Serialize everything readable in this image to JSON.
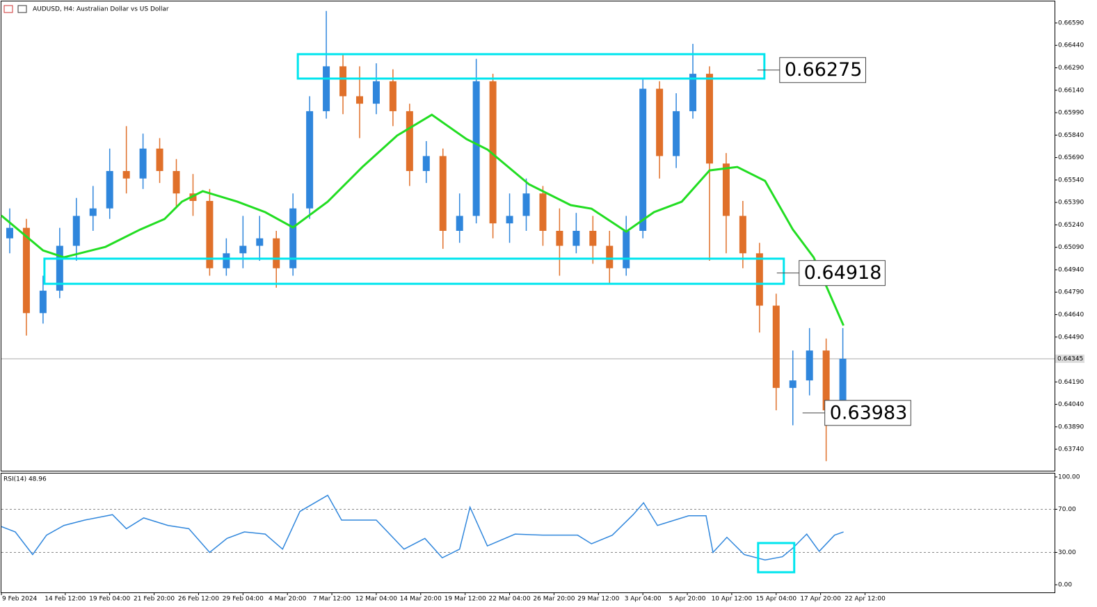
{
  "chart_data": [
    {
      "type": "candlestick",
      "title": "AUDUSD, H4:  Australian Dollar vs US Dollar",
      "x": [
        3,
        9,
        15,
        21,
        27,
        33,
        39,
        45,
        51,
        57,
        63,
        69,
        75,
        81,
        87,
        93,
        99,
        105,
        111,
        117,
        123,
        129,
        135,
        141,
        147,
        153,
        159,
        165,
        171,
        177,
        183,
        189,
        195,
        201,
        207,
        213,
        219,
        225,
        231,
        237,
        243,
        249,
        255,
        261,
        267,
        273,
        279,
        285,
        291,
        297,
        303
      ],
      "open": [
        0.6515,
        0.6522,
        0.6465,
        0.648,
        0.651,
        0.653,
        0.6535,
        0.656,
        0.6555,
        0.6575,
        0.656,
        0.6545,
        0.654,
        0.6495,
        0.6505,
        0.651,
        0.6515,
        0.6495,
        0.6535,
        0.66,
        0.663,
        0.661,
        0.6605,
        0.662,
        0.66,
        0.656,
        0.657,
        0.652,
        0.653,
        0.662,
        0.6525,
        0.653,
        0.6545,
        0.652,
        0.651,
        0.652,
        0.651,
        0.6495,
        0.652,
        0.6615,
        0.657,
        0.66,
        0.6625,
        0.6565,
        0.653,
        0.6505,
        0.647,
        0.6415,
        0.642,
        0.644,
        0.64
      ],
      "high": [
        0.6535,
        0.6528,
        0.649,
        0.6522,
        0.6542,
        0.655,
        0.6575,
        0.659,
        0.6585,
        0.6582,
        0.6568,
        0.6558,
        0.6548,
        0.6515,
        0.653,
        0.653,
        0.652,
        0.6545,
        0.661,
        0.6667,
        0.6638,
        0.663,
        0.6632,
        0.6628,
        0.6605,
        0.658,
        0.6575,
        0.6545,
        0.6635,
        0.6625,
        0.6545,
        0.6555,
        0.655,
        0.6535,
        0.6532,
        0.653,
        0.652,
        0.653,
        0.6622,
        0.662,
        0.6612,
        0.6645,
        0.663,
        0.6572,
        0.654,
        0.6512,
        0.6478,
        0.644,
        0.6455,
        0.6448,
        0.6455
      ],
      "low": [
        0.6505,
        0.645,
        0.6458,
        0.6475,
        0.65,
        0.652,
        0.6528,
        0.6545,
        0.6548,
        0.6552,
        0.6535,
        0.653,
        0.649,
        0.649,
        0.6495,
        0.65,
        0.6482,
        0.649,
        0.6528,
        0.6595,
        0.6598,
        0.6582,
        0.6598,
        0.659,
        0.655,
        0.6552,
        0.6508,
        0.6512,
        0.6525,
        0.6515,
        0.6512,
        0.652,
        0.651,
        0.649,
        0.6505,
        0.6498,
        0.6485,
        0.649,
        0.6515,
        0.6555,
        0.6562,
        0.6595,
        0.65,
        0.6505,
        0.6495,
        0.6452,
        0.64,
        0.639,
        0.641,
        0.6366,
        0.6395
      ],
      "close": [
        0.6522,
        0.6465,
        0.648,
        0.651,
        0.653,
        0.6535,
        0.656,
        0.6555,
        0.6575,
        0.656,
        0.6545,
        0.654,
        0.6495,
        0.6505,
        0.651,
        0.6515,
        0.6495,
        0.6535,
        0.66,
        0.663,
        0.661,
        0.6605,
        0.662,
        0.66,
        0.656,
        0.657,
        0.652,
        0.653,
        0.662,
        0.6525,
        0.653,
        0.6545,
        0.652,
        0.651,
        0.652,
        0.651,
        0.6495,
        0.652,
        0.6615,
        0.657,
        0.66,
        0.6625,
        0.6565,
        0.653,
        0.6505,
        0.647,
        0.6415,
        0.642,
        0.644,
        0.64,
        0.64345
      ],
      "up_color": "#2f86dc",
      "down_color": "#e0702a",
      "ma": {
        "color": "#22dd22",
        "x": [
          0,
          15,
          22.5,
          37.5,
          50,
          58.75,
          65,
          72.5,
          85,
          95,
          105,
          117.5,
          130,
          142.5,
          155,
          167.5,
          175,
          190,
          205,
          212.5,
          225,
          235,
          245,
          255,
          265,
          275,
          285,
          292.5,
          303.25
        ],
        "values": [
          0.65302,
          0.65069,
          0.65023,
          0.65093,
          0.65209,
          0.65279,
          0.65395,
          0.65465,
          0.65395,
          0.65325,
          0.65223,
          0.65395,
          0.65627,
          0.65837,
          0.65976,
          0.65813,
          0.65744,
          0.65511,
          0.65372,
          0.65348,
          0.65195,
          0.65325,
          0.65395,
          0.65604,
          0.65627,
          0.65534,
          0.65209,
          0.65023,
          0.64567
        ]
      },
      "current_price": 0.64345,
      "levels": [
        {
          "value": 0.66275,
          "box": [
            0.66381,
            0.66218
          ],
          "x": [
            106.75,
            274.75
          ]
        },
        {
          "value": 0.64918,
          "box": [
            0.65014,
            0.64846
          ],
          "x": [
            15.5,
            281.75
          ]
        },
        {
          "value": 0.63983,
          "x": [
            283.75,
            291
          ]
        }
      ],
      "xlim": [
        0,
        379.25
      ],
      "ylim": [
        0.63601,
        0.66734
      ],
      "yticks": [
        {
          "value": 0.6374,
          "label": "0.63740"
        },
        {
          "value": 0.6389,
          "label": "0.63890"
        },
        {
          "value": 0.6404,
          "label": "0.64040"
        },
        {
          "value": 0.6419,
          "label": "0.64190"
        },
        {
          "value": 0.6449,
          "label": "0.64490"
        },
        {
          "value": 0.6464,
          "label": "0.64640"
        },
        {
          "value": 0.6479,
          "label": "0.64790"
        },
        {
          "value": 0.6494,
          "label": "0.64940"
        },
        {
          "value": 0.6509,
          "label": "0.65090"
        },
        {
          "value": 0.6524,
          "label": "0.65240"
        },
        {
          "value": 0.6539,
          "label": "0.65390"
        },
        {
          "value": 0.6554,
          "label": "0.65540"
        },
        {
          "value": 0.6569,
          "label": "0.65690"
        },
        {
          "value": 0.6584,
          "label": "0.65840"
        },
        {
          "value": 0.6599,
          "label": "0.65990"
        },
        {
          "value": 0.6614,
          "label": "0.66140"
        },
        {
          "value": 0.6629,
          "label": "0.66290"
        },
        {
          "value": 0.6644,
          "label": "0.66440"
        },
        {
          "value": 0.6659,
          "label": "0.66590"
        }
      ],
      "xticks": [
        {
          "value": 0,
          "label": "9 Feb 2024"
        },
        {
          "value": 23,
          "label": "14 Feb 12:00"
        },
        {
          "value": 39,
          "label": "19 Feb 04:00"
        },
        {
          "value": 55,
          "label": "21 Feb 20:00"
        },
        {
          "value": 71,
          "label": "26 Feb 12:00"
        },
        {
          "value": 87,
          "label": "29 Feb 04:00"
        },
        {
          "value": 103,
          "label": "4 Mar 20:00"
        },
        {
          "value": 119,
          "label": "7 Mar 12:00"
        },
        {
          "value": 135,
          "label": "12 Mar 04:00"
        },
        {
          "value": 151,
          "label": "14 Mar 20:00"
        },
        {
          "value": 167,
          "label": "19 Mar 12:00"
        },
        {
          "value": 183,
          "label": "22 Mar 04:00"
        },
        {
          "value": 199,
          "label": "26 Mar 20:00"
        },
        {
          "value": 215,
          "label": "29 Mar 12:00"
        },
        {
          "value": 231,
          "label": "3 Apr 04:00"
        },
        {
          "value": 247,
          "label": "5 Apr 20:00"
        },
        {
          "value": 263,
          "label": "10 Apr 12:00"
        },
        {
          "value": 279,
          "label": "15 Apr 04:00"
        },
        {
          "value": 295,
          "label": "17 Apr 20:00"
        },
        {
          "value": 311,
          "label": "22 Apr 12:00"
        }
      ]
    },
    {
      "type": "line",
      "title": "RSI(14) 48.96",
      "color": "#2f86dc",
      "x": [
        0,
        5,
        11.25,
        16.25,
        22.5,
        30,
        40,
        45,
        51.25,
        60,
        67.5,
        75,
        81.25,
        87.5,
        95,
        101.25,
        107.5,
        117.5,
        122.5,
        135,
        145,
        152.5,
        158.75,
        165,
        168.75,
        175,
        185,
        195,
        207.5,
        212.5,
        220,
        227.5,
        231.25,
        236.25,
        247.5,
        253.75,
        256.25,
        261.25,
        267.5,
        275,
        281.25,
        285,
        290,
        294.5,
        300,
        303.25
      ],
      "values": [
        54,
        49,
        28,
        46,
        55,
        60,
        65,
        52,
        62,
        55,
        52,
        30,
        43,
        49,
        47,
        33,
        68,
        83,
        60,
        60,
        33,
        43,
        25,
        33,
        72,
        36,
        47,
        46,
        46,
        38,
        46,
        65,
        76,
        55,
        64,
        64,
        30,
        44,
        28,
        23,
        26,
        34,
        47,
        31,
        46,
        49
      ],
      "box": {
        "x": [
          272.5,
          285.5
        ],
        "range": [
          38.7,
          11.6
        ]
      },
      "ylim": [
        -7.1,
        103.2
      ],
      "yticks": [
        {
          "value": 0,
          "label": "0.00"
        },
        {
          "value": 30,
          "label": "30.00"
        },
        {
          "value": 70,
          "label": "70.00"
        },
        {
          "value": 100,
          "label": "100.00"
        }
      ]
    }
  ]
}
